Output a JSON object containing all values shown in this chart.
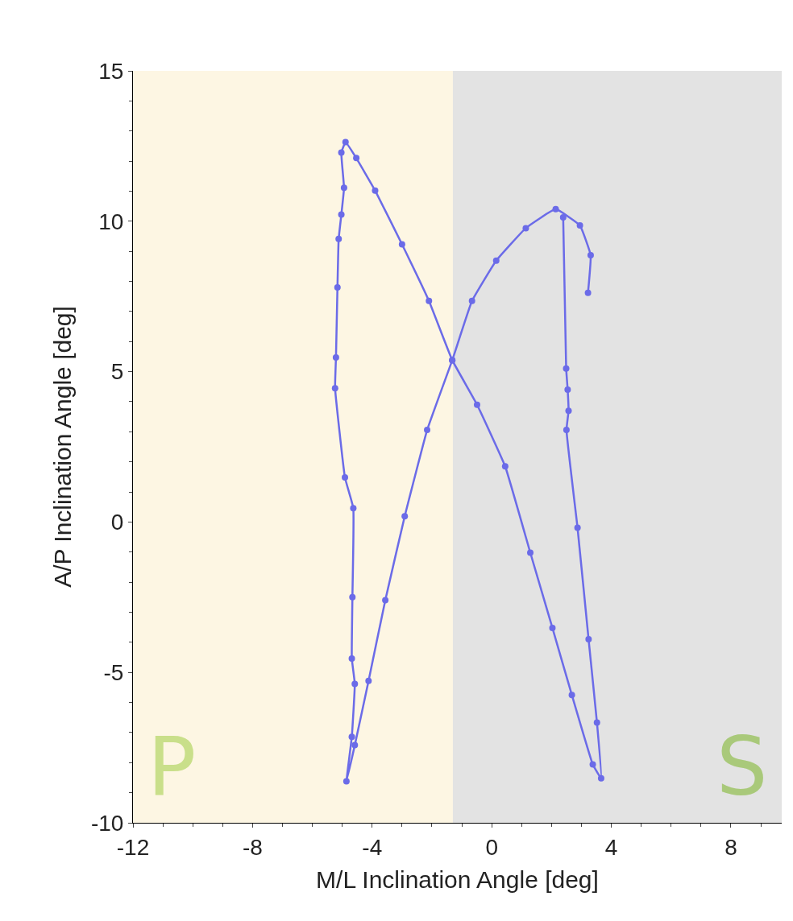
{
  "chart_data": {
    "type": "line",
    "xlabel": "M/L Inclination Angle [deg]",
    "ylabel": "A/P Inclination Angle [deg]",
    "series": [
      {
        "color": "#6b6be8",
        "x": [
          2.39,
          2.49,
          2.54,
          2.57,
          2.5,
          2.87,
          3.24,
          3.52,
          3.66,
          3.38,
          2.68,
          2.03,
          1.29,
          0.45,
          -0.49,
          -1.32,
          -2.1,
          -3.0,
          -3.9,
          -4.53,
          -4.89,
          -5.03,
          -4.94,
          -5.03,
          -5.12,
          -5.16,
          -5.21,
          -5.24,
          -4.91,
          -4.63,
          -4.66,
          -4.68,
          -4.58,
          -4.68,
          -4.86,
          -4.58,
          -4.12,
          -3.56,
          -2.91,
          -2.16,
          -1.32,
          -0.66,
          0.15,
          1.14,
          2.14,
          2.95,
          3.31,
          3.22
        ],
        "values": [
          10.13,
          5.1,
          4.4,
          3.7,
          3.06,
          -0.19,
          -3.9,
          -6.67,
          -8.52,
          -8.06,
          -5.75,
          -3.52,
          -1.02,
          1.85,
          3.9,
          5.38,
          7.35,
          9.23,
          11.02,
          12.1,
          12.63,
          12.28,
          11.11,
          10.22,
          9.41,
          7.8,
          5.47,
          4.45,
          1.48,
          0.46,
          -2.5,
          -4.54,
          -5.38,
          -7.14,
          -8.62,
          -7.42,
          -5.28,
          -2.6,
          0.19,
          3.06,
          5.38,
          7.35,
          8.69,
          9.77,
          10.4,
          9.86,
          8.87,
          7.62
        ]
      }
    ],
    "xlim": [
      -12,
      9.7
    ],
    "ylim": [
      -10,
      15
    ],
    "xticks": [
      -12,
      -8,
      -4,
      0,
      4,
      8
    ],
    "yticks": [
      -10,
      -5,
      0,
      5,
      10,
      15
    ],
    "bands": [
      {
        "axis": "x",
        "from": -12,
        "to": -1.3,
        "color": "#fdf6e3"
      },
      {
        "axis": "x",
        "from": -1.3,
        "to": 9.7,
        "color": "#e3e3e3"
      }
    ],
    "annotations": [
      "P",
      "S"
    ],
    "marker": "circle",
    "grid": false
  }
}
